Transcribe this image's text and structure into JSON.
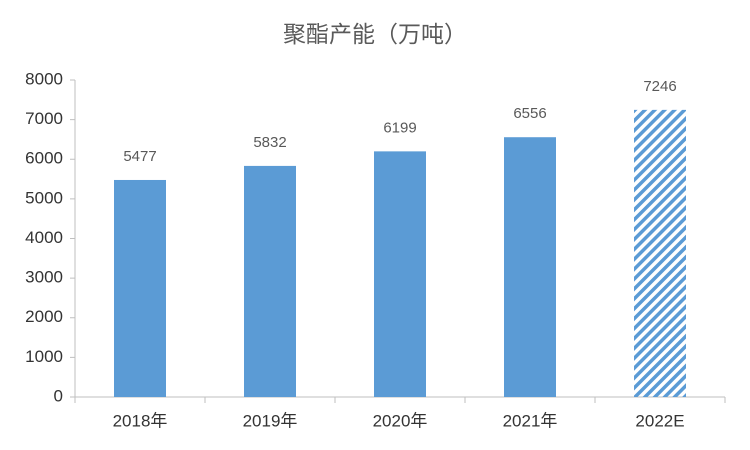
{
  "chart_data": {
    "type": "bar",
    "title": "聚酯产能（万吨）",
    "categories": [
      "2018年",
      "2019年",
      "2020年",
      "2021年",
      "2022E"
    ],
    "values": [
      5477,
      5832,
      6199,
      6556,
      7246
    ],
    "color": "#5b9bd5",
    "hatched": [
      false,
      false,
      false,
      false,
      true
    ],
    "ylim": [
      0,
      8000
    ],
    "yticks": [
      0,
      1000,
      2000,
      3000,
      4000,
      5000,
      6000,
      7000,
      8000
    ],
    "grid": false
  }
}
